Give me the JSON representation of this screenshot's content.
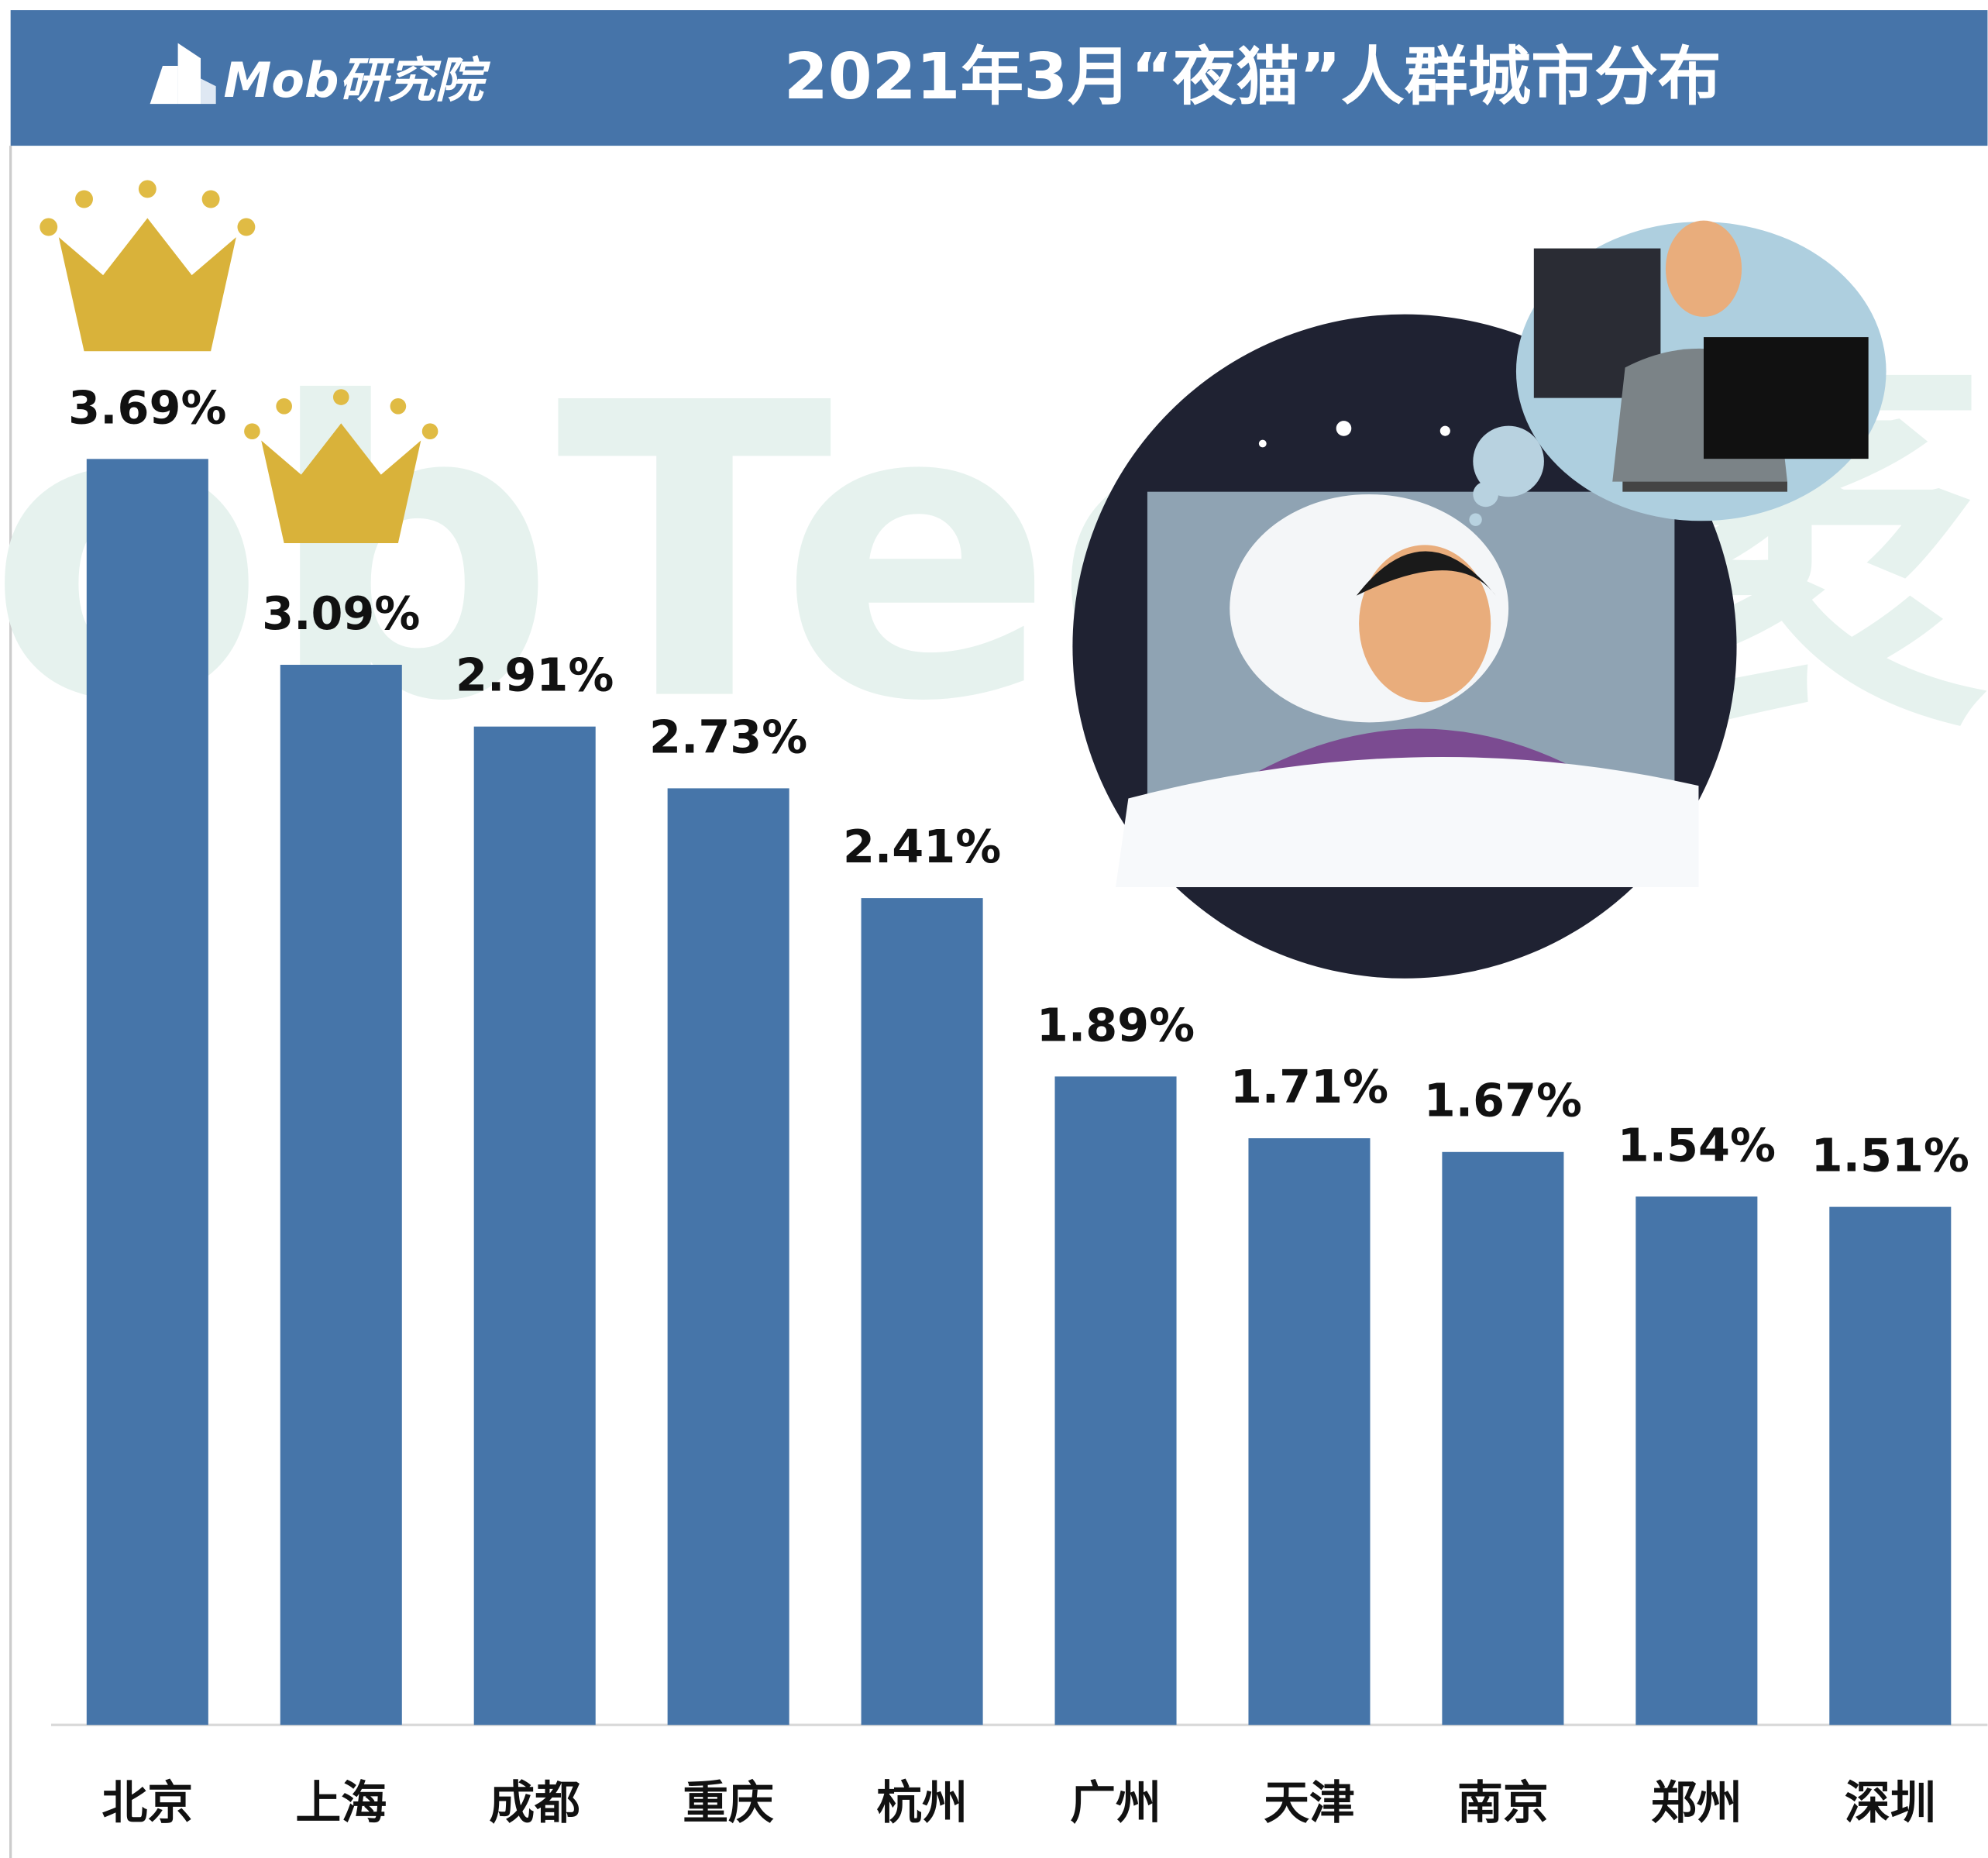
{
  "logo": "Mob研究院",
  "watermark": "MobTech袤博",
  "chart_data": {
    "type": "bar",
    "title": "2021年3月“夜猫”人群城市分布",
    "categories": [
      "北京",
      "上海",
      "成都",
      "重庆",
      "杭州",
      "广州",
      "天津",
      "南京",
      "郑州",
      "深圳"
    ],
    "values": [
      3.69,
      3.09,
      2.91,
      2.73,
      2.41,
      1.89,
      1.71,
      1.67,
      1.54,
      1.51
    ],
    "value_labels": [
      "3.69%",
      "3.09%",
      "2.91%",
      "2.73%",
      "2.41%",
      "1.89%",
      "1.71%",
      "1.67%",
      "1.54%",
      "1.51%"
    ],
    "color": "#4675a9"
  }
}
